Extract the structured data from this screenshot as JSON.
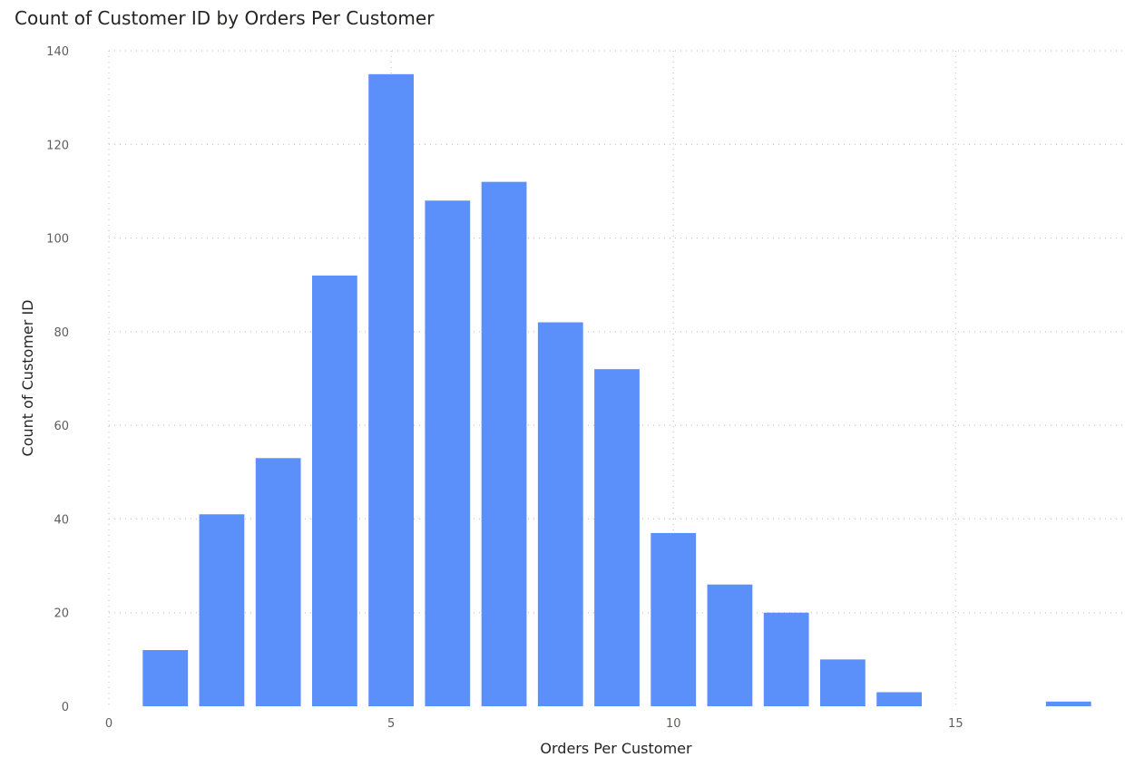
{
  "chart_data": {
    "type": "bar",
    "title": "Count of Customer ID by Orders Per Customer",
    "xlabel": "Orders Per Customer",
    "ylabel": "Count of Customer ID",
    "x": [
      1,
      2,
      3,
      4,
      5,
      6,
      7,
      8,
      9,
      10,
      11,
      12,
      13,
      14,
      17
    ],
    "values": [
      12,
      41,
      53,
      92,
      135,
      108,
      112,
      82,
      72,
      37,
      26,
      20,
      10,
      3,
      1
    ],
    "xlim": [
      0,
      18
    ],
    "ylim": [
      0,
      140
    ],
    "xticks": [
      0,
      5,
      10,
      15
    ],
    "yticks": [
      0,
      20,
      40,
      60,
      80,
      100,
      120,
      140
    ],
    "grid": true,
    "bar_color": "#5b8ff9"
  }
}
